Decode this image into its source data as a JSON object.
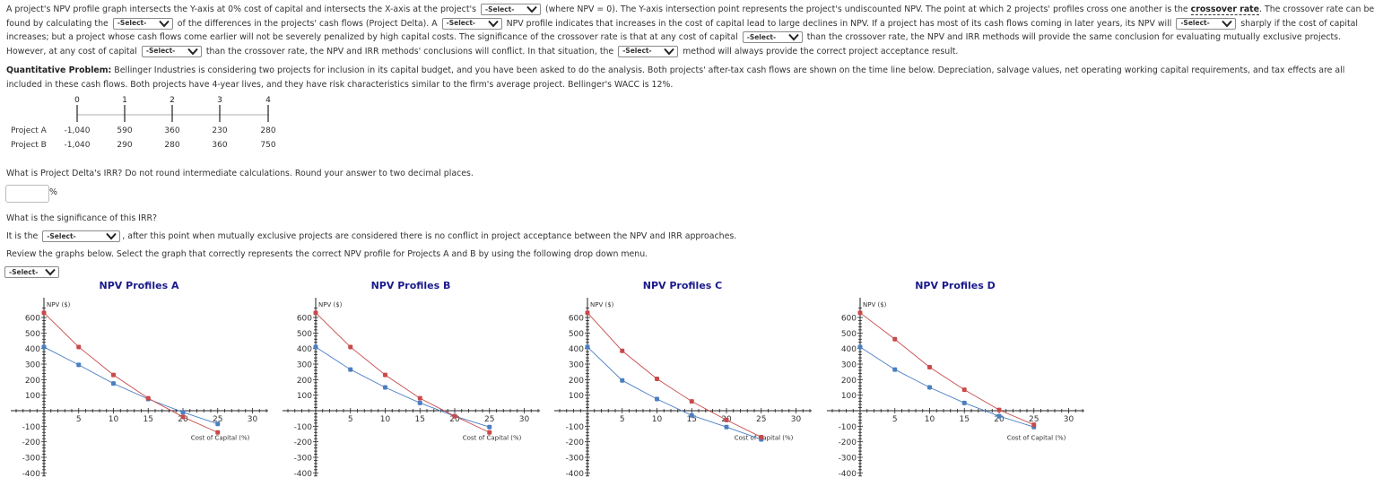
{
  "intro": {
    "s1": "A project's NPV profile graph intersects the Y-axis at 0% cost of capital and intersects the X-axis at the project's",
    "s2": "(where NPV = 0). The Y-axis intersection point represents the project's undiscounted NPV. The point at which 2 projects' profiles cross one another is the",
    "crossover_term": "crossover rate",
    "s3": ". The crossover rate can be found by calculating the",
    "s4": "of the differences in the projects' cash flows (Project Delta). A",
    "s5": "NPV profile indicates that increases in the cost of capital lead to large declines in NPV. If a project has most of its cash flows coming in later years, its NPV will",
    "s6": "sharply if the cost of capital increases; but a project whose cash flows come earlier will not be severely penalized by high capital costs. The significance of the crossover rate is that at any cost of capital",
    "s7": "than the crossover rate, the NPV and IRR methods will provide the same conclusion for evaluating mutually exclusive projects. However, at any cost of capital",
    "s8": "than the crossover rate, the NPV and IRR methods' conclusions will conflict. In that situation, the",
    "s9": "method will always provide the correct project acceptance result.",
    "select_placeholder": "-Select-"
  },
  "problem": {
    "label": "Quantitative Problem:",
    "text": "Bellinger Industries is considering two projects for inclusion in its capital budget, and you have been asked to do the analysis. Both projects' after-tax cash flows are shown on the time line below. Depreciation, salvage values, net operating working capital requirements, and tax effects are all included in these cash flows. Both projects have 4-year lives, and they have risk characteristics similar to the firm's average project. Bellinger's WACC is 12%."
  },
  "timeline": {
    "periods": [
      "0",
      "1",
      "2",
      "3",
      "4"
    ],
    "projects": [
      {
        "name": "Project A",
        "flows": [
          "-1,040",
          "590",
          "360",
          "230",
          "280"
        ]
      },
      {
        "name": "Project B",
        "flows": [
          "-1,040",
          "290",
          "280",
          "360",
          "750"
        ]
      }
    ]
  },
  "q1": {
    "text": "What is Project Delta's IRR? Do not round intermediate calculations. Round your answer to two decimal places.",
    "value": "",
    "unit": "%"
  },
  "q2": {
    "text": "What is the significance of this IRR?",
    "prefix": "It is the",
    "select": "-Select-",
    "suffix": ", after this point when mutually exclusive projects are considered there is no conflict in project acceptance between the NPV and IRR approaches."
  },
  "q3": {
    "text": "Review the graphs below. Select the graph that correctly represents the correct NPV profile for Projects A and B by using the following drop down menu.",
    "select": "-Select-"
  },
  "colors": {
    "series_blue": "#4a7fc1",
    "series_red": "#c94a4a",
    "title": "#1a1a8c"
  },
  "chart_data": [
    {
      "type": "line",
      "title": "NPV Profiles A",
      "xlabel": "Cost of Capital (%)",
      "ylabel": "NPV ($)",
      "x": [
        0,
        5,
        10,
        15,
        20,
        25
      ],
      "xlim": [
        -8,
        32
      ],
      "ylim": [
        -400,
        650
      ],
      "xticks": [
        5,
        10,
        15,
        20,
        25,
        30
      ],
      "yticks": [
        600,
        500,
        400,
        300,
        200,
        100,
        -100,
        -200,
        -300,
        -400
      ],
      "series": [
        {
          "name": "blue",
          "values": [
            410,
            295,
            175,
            75,
            -10,
            -85
          ]
        },
        {
          "name": "red",
          "values": [
            630,
            410,
            230,
            80,
            -40,
            -140
          ]
        }
      ]
    },
    {
      "type": "line",
      "title": "NPV Profiles B",
      "xlabel": "Cost of Capital (%)",
      "ylabel": "NPV ($)",
      "x": [
        0,
        5,
        10,
        15,
        20,
        25
      ],
      "xlim": [
        -8,
        32
      ],
      "ylim": [
        -400,
        650
      ],
      "xticks": [
        5,
        10,
        15,
        20,
        25,
        30
      ],
      "yticks": [
        600,
        500,
        400,
        300,
        200,
        100,
        -100,
        -200,
        -300,
        -400
      ],
      "series": [
        {
          "name": "blue",
          "values": [
            410,
            265,
            150,
            50,
            -35,
            -105
          ]
        },
        {
          "name": "red",
          "values": [
            630,
            410,
            230,
            80,
            -35,
            -140
          ]
        }
      ]
    },
    {
      "type": "line",
      "title": "NPV Profiles C",
      "xlabel": "Cost of Capital (%)",
      "ylabel": "NPV ($)",
      "x": [
        0,
        5,
        10,
        15,
        20,
        25
      ],
      "xlim": [
        -8,
        32
      ],
      "ylim": [
        -400,
        650
      ],
      "xticks": [
        5,
        10,
        15,
        20,
        25,
        30
      ],
      "yticks": [
        600,
        500,
        400,
        300,
        200,
        100,
        -100,
        -200,
        -300,
        -400
      ],
      "series": [
        {
          "name": "blue",
          "values": [
            410,
            195,
            75,
            -30,
            -105,
            -185
          ]
        },
        {
          "name": "red",
          "values": [
            630,
            385,
            205,
            60,
            -60,
            -170
          ]
        }
      ]
    },
    {
      "type": "line",
      "title": "NPV Profiles D",
      "xlabel": "Cost of Capital (%)",
      "ylabel": "NPV ($)",
      "x": [
        0,
        5,
        10,
        15,
        20,
        25
      ],
      "xlim": [
        -8,
        32
      ],
      "ylim": [
        -400,
        650
      ],
      "xticks": [
        5,
        10,
        15,
        20,
        25,
        30
      ],
      "yticks": [
        600,
        500,
        400,
        300,
        200,
        100,
        -100,
        -200,
        -300,
        -400
      ],
      "series": [
        {
          "name": "blue",
          "values": [
            410,
            265,
            150,
            50,
            -35,
            -105
          ]
        },
        {
          "name": "red",
          "values": [
            630,
            460,
            280,
            135,
            5,
            -90
          ]
        }
      ]
    }
  ]
}
